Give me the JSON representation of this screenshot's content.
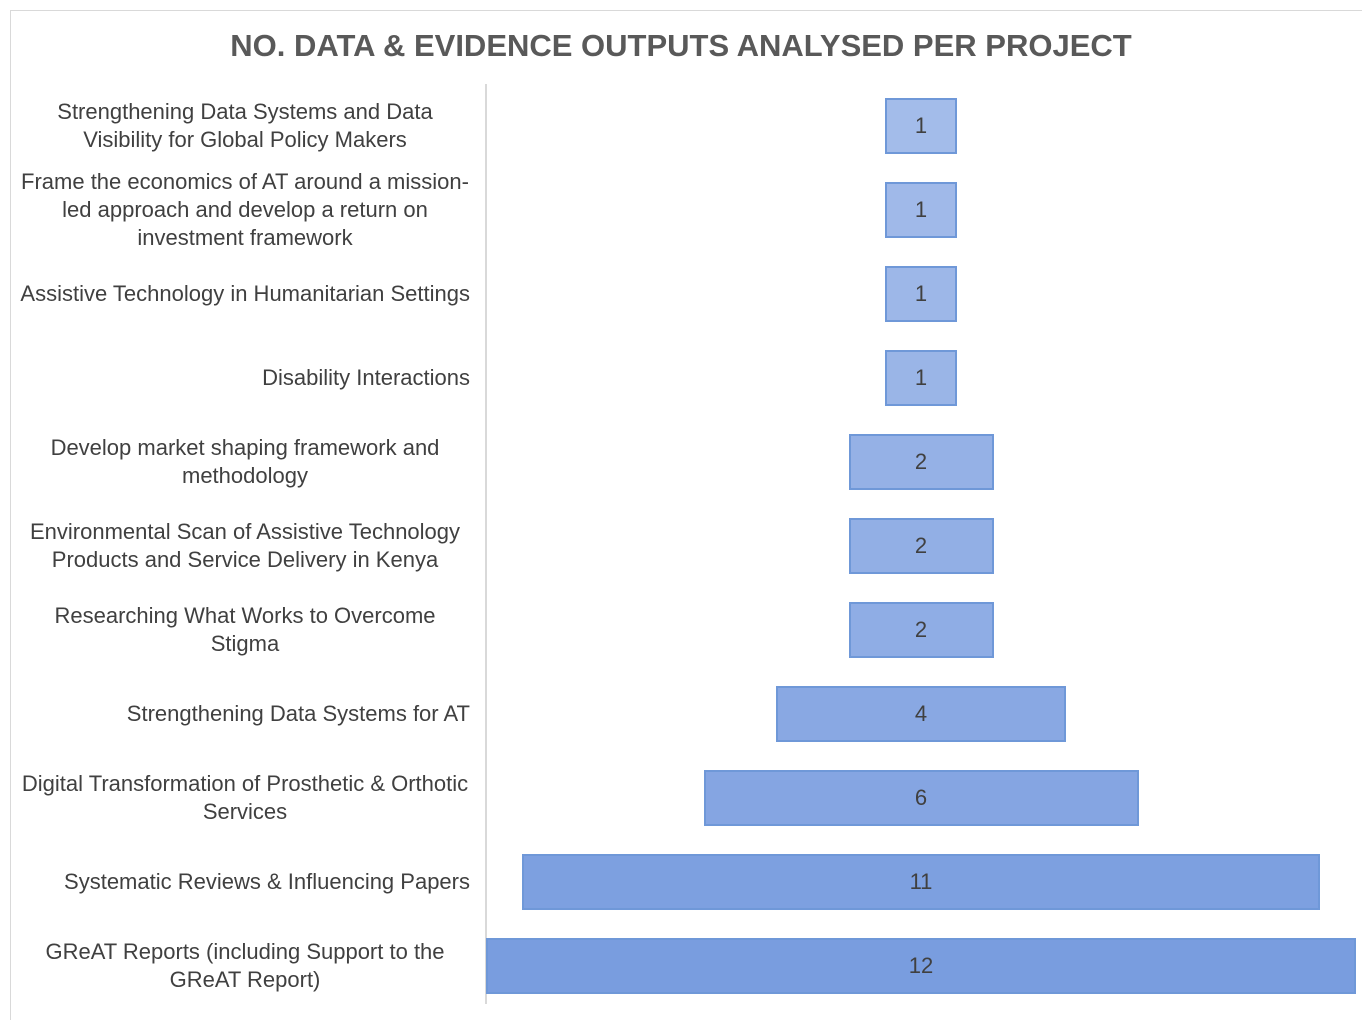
{
  "chart_data": {
    "type": "funnel",
    "title": "NO. DATA & EVIDENCE OUTPUTS ANALYSED PER PROJECT",
    "categories": [
      "Strengthening Data Systems and Data Visibility for Global Policy Makers",
      "Frame the economics of AT around a mission-led approach and develop a return on investment framework",
      "Assistive Technology in Humanitarian Settings",
      "Disability Interactions",
      "Develop market shaping framework and methodology",
      "Environmental Scan of Assistive Technology Products and Service Delivery in Kenya",
      "Researching What Works to Overcome Stigma",
      "Strengthening Data Systems for AT",
      "Digital Transformation of Prosthetic & Orthotic Services",
      "Systematic Reviews & Influencing Papers",
      "GReAT Reports (including Support to the GReAT Report)"
    ],
    "values": [
      1,
      1,
      1,
      1,
      2,
      2,
      2,
      4,
      6,
      11,
      12
    ],
    "colors": [
      "#a3bcea",
      "#a0b9e9",
      "#9db7e8",
      "#9ab5e7",
      "#95b1e6",
      "#92afe5",
      "#8fade5",
      "#89a8e3",
      "#85a5e2",
      "#7da0e0",
      "#799ddf"
    ]
  }
}
